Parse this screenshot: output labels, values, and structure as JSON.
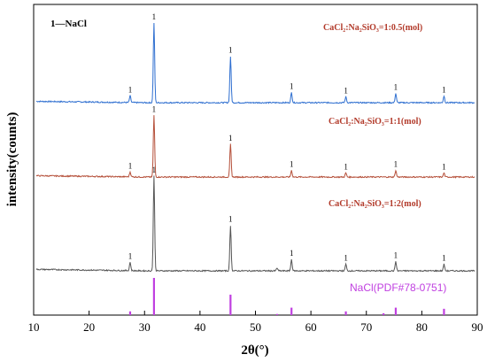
{
  "chart_data": {
    "type": "line",
    "xlabel": "2θ(°)",
    "ylabel": "intensity(counts)",
    "xlim": [
      10,
      90
    ],
    "xticks": [
      10,
      20,
      30,
      40,
      50,
      60,
      70,
      80,
      90
    ],
    "peak_marker": "1",
    "legend_label": "1—NaCl",
    "colors": {
      "blue": "#2f6fd0",
      "red": "#b5503a",
      "gray": "#555555",
      "reference": "#c040e0",
      "annotation": "#b23a2a"
    },
    "series": [
      {
        "label": "CaCl₂:Na₂SiO₃=1:0.5(mol)",
        "color": "blue",
        "baseline": 0,
        "peaks": [
          {
            "x": 27.4,
            "h": 0.08
          },
          {
            "x": 31.7,
            "h": 0.95
          },
          {
            "x": 45.5,
            "h": 0.55
          },
          {
            "x": 56.5,
            "h": 0.12
          },
          {
            "x": 66.3,
            "h": 0.07
          },
          {
            "x": 75.3,
            "h": 0.11
          },
          {
            "x": 84.0,
            "h": 0.08
          }
        ]
      },
      {
        "label": "CaCl₂:Na₂SiO₃=1:1(mol)",
        "color": "red",
        "baseline": 0,
        "peaks": [
          {
            "x": 27.4,
            "h": 0.06
          },
          {
            "x": 31.7,
            "h": 0.75
          },
          {
            "x": 45.5,
            "h": 0.4
          },
          {
            "x": 56.5,
            "h": 0.08
          },
          {
            "x": 66.3,
            "h": 0.05
          },
          {
            "x": 75.3,
            "h": 0.08
          },
          {
            "x": 84.0,
            "h": 0.05
          }
        ]
      },
      {
        "label": "CaCl₂:Na₂SiO₃=1:2(mol)",
        "color": "gray",
        "baseline": 0,
        "peaks": [
          {
            "x": 27.4,
            "h": 0.09
          },
          {
            "x": 31.7,
            "h": 1.0
          },
          {
            "x": 45.5,
            "h": 0.48
          },
          {
            "x": 53.9,
            "h": 0.03
          },
          {
            "x": 56.5,
            "h": 0.12
          },
          {
            "x": 66.3,
            "h": 0.07
          },
          {
            "x": 75.3,
            "h": 0.1
          },
          {
            "x": 84.0,
            "h": 0.07
          }
        ]
      }
    ],
    "reference": {
      "label": "NaCl(PDF#78-0751)",
      "sticks": [
        {
          "x": 27.4,
          "h": 0.1
        },
        {
          "x": 31.7,
          "h": 1.0
        },
        {
          "x": 45.5,
          "h": 0.55
        },
        {
          "x": 53.9,
          "h": 0.03
        },
        {
          "x": 56.5,
          "h": 0.2
        },
        {
          "x": 66.3,
          "h": 0.1
        },
        {
          "x": 73.1,
          "h": 0.05
        },
        {
          "x": 75.3,
          "h": 0.2
        },
        {
          "x": 84.0,
          "h": 0.17
        }
      ]
    }
  }
}
